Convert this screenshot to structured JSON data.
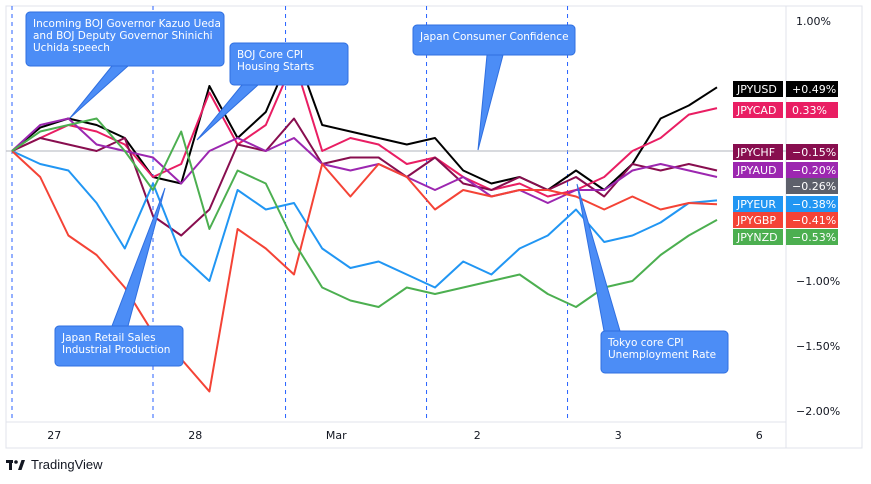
{
  "chart_data": {
    "type": "line",
    "y_unit": "%",
    "ylim": [
      -2.1,
      1.1
    ],
    "y_ticks": [
      {
        "value": 1.0,
        "label": "1.00%"
      },
      {
        "value": -1.0,
        "label": "−1.00%"
      },
      {
        "value": -1.5,
        "label": "−1.50%"
      },
      {
        "value": -2.0,
        "label": "−2.00%"
      }
    ],
    "x_ticks": [
      "27",
      "28",
      "Mar",
      "2",
      "3",
      "6"
    ],
    "grid": false,
    "series": [
      {
        "name": "JPYUSD",
        "value_label": "+0.49%",
        "color": "#000000",
        "x": [
          0,
          0.2,
          0.4,
          0.6,
          0.8,
          1.0,
          1.2,
          1.4,
          1.6,
          1.8,
          2.0,
          2.2,
          2.4,
          2.6,
          2.8,
          3.0,
          3.2,
          3.4,
          3.6,
          3.8,
          4.0,
          4.2,
          4.4,
          4.6,
          4.8,
          5.0
        ],
        "y": [
          0.0,
          0.18,
          0.25,
          0.2,
          0.1,
          -0.2,
          -0.25,
          0.5,
          0.1,
          0.3,
          0.8,
          0.2,
          0.15,
          0.1,
          0.05,
          0.1,
          -0.15,
          -0.25,
          -0.2,
          -0.3,
          -0.15,
          -0.3,
          -0.1,
          0.25,
          0.35,
          0.49
        ]
      },
      {
        "name": "JPYCAD",
        "value_label": "0.33%",
        "color": "#e91e63",
        "x": [
          0,
          0.2,
          0.4,
          0.6,
          0.8,
          1.0,
          1.2,
          1.4,
          1.6,
          1.8,
          2.0,
          2.2,
          2.4,
          2.6,
          2.8,
          3.0,
          3.2,
          3.4,
          3.6,
          3.8,
          4.0,
          4.2,
          4.4,
          4.6,
          4.8,
          5.0
        ],
        "y": [
          0.0,
          0.1,
          0.2,
          0.15,
          0.05,
          -0.2,
          -0.1,
          0.45,
          0.05,
          0.2,
          0.7,
          0.0,
          0.1,
          0.05,
          -0.1,
          -0.05,
          -0.2,
          -0.3,
          -0.25,
          -0.35,
          -0.3,
          -0.2,
          0.0,
          0.1,
          0.28,
          0.33
        ]
      },
      {
        "name": "JPYCHF",
        "value_label": "−0.15%",
        "color": "#880e4f",
        "x": [
          0,
          0.2,
          0.4,
          0.6,
          0.8,
          1.0,
          1.2,
          1.4,
          1.6,
          1.8,
          2.0,
          2.2,
          2.4,
          2.6,
          2.8,
          3.0,
          3.2,
          3.4,
          3.6,
          3.8,
          4.0,
          4.2,
          4.4,
          4.6,
          4.8,
          5.0
        ],
        "y": [
          0.0,
          0.1,
          0.05,
          0.0,
          0.1,
          -0.5,
          -0.65,
          -0.45,
          0.05,
          0.0,
          0.25,
          -0.1,
          -0.05,
          -0.05,
          -0.2,
          -0.05,
          -0.25,
          -0.3,
          -0.2,
          -0.3,
          -0.2,
          -0.35,
          -0.1,
          -0.15,
          -0.1,
          -0.15
        ]
      },
      {
        "name": "JPYAUD",
        "value_label": "−0.20%",
        "color": "#9c27b0",
        "x": [
          0,
          0.2,
          0.4,
          0.6,
          0.8,
          1.0,
          1.2,
          1.4,
          1.6,
          1.8,
          2.0,
          2.2,
          2.4,
          2.6,
          2.8,
          3.0,
          3.2,
          3.4,
          3.6,
          3.8,
          4.0,
          4.2,
          4.4,
          4.6,
          4.8,
          5.0
        ],
        "y": [
          0.0,
          0.2,
          0.25,
          0.05,
          0.0,
          -0.05,
          -0.25,
          0.0,
          0.1,
          0.0,
          0.1,
          -0.1,
          -0.15,
          -0.1,
          -0.2,
          -0.3,
          -0.2,
          -0.35,
          -0.3,
          -0.4,
          -0.3,
          -0.3,
          -0.15,
          -0.1,
          -0.15,
          -0.2
        ]
      },
      {
        "name": "",
        "value_label": "−0.26%",
        "color": "#5d606b",
        "x": [],
        "y": []
      },
      {
        "name": "JPYEUR",
        "value_label": "−0.38%",
        "color": "#2196f3",
        "x": [
          0,
          0.2,
          0.4,
          0.6,
          0.8,
          1.0,
          1.2,
          1.4,
          1.6,
          1.8,
          2.0,
          2.2,
          2.4,
          2.6,
          2.8,
          3.0,
          3.2,
          3.4,
          3.6,
          3.8,
          4.0,
          4.2,
          4.4,
          4.6,
          4.8,
          5.0
        ],
        "y": [
          0.0,
          -0.1,
          -0.15,
          -0.4,
          -0.75,
          -0.25,
          -0.8,
          -1.0,
          -0.3,
          -0.45,
          -0.4,
          -0.75,
          -0.9,
          -0.85,
          -0.95,
          -1.05,
          -0.85,
          -0.95,
          -0.75,
          -0.65,
          -0.45,
          -0.7,
          -0.65,
          -0.55,
          -0.4,
          -0.38
        ]
      },
      {
        "name": "JPYGBP",
        "value_label": "−0.41%",
        "color": "#f44336",
        "x": [
          0,
          0.2,
          0.4,
          0.6,
          0.8,
          1.0,
          1.2,
          1.4,
          1.6,
          1.8,
          2.0,
          2.2,
          2.4,
          2.6,
          2.8,
          3.0,
          3.2,
          3.4,
          3.6,
          3.8,
          4.0,
          4.2,
          4.4,
          4.6,
          4.8,
          5.0
        ],
        "y": [
          0.0,
          -0.2,
          -0.65,
          -0.8,
          -1.05,
          -1.4,
          -1.6,
          -1.85,
          -0.6,
          -0.75,
          -0.95,
          -0.1,
          -0.35,
          -0.1,
          -0.2,
          -0.45,
          -0.3,
          -0.35,
          -0.3,
          -0.3,
          -0.35,
          -0.45,
          -0.35,
          -0.45,
          -0.4,
          -0.41
        ]
      },
      {
        "name": "JPYNZD",
        "value_label": "−0.53%",
        "color": "#4caf50",
        "x": [
          0,
          0.2,
          0.4,
          0.6,
          0.8,
          1.0,
          1.2,
          1.4,
          1.6,
          1.8,
          2.0,
          2.2,
          2.4,
          2.6,
          2.8,
          3.0,
          3.2,
          3.4,
          3.6,
          3.8,
          4.0,
          4.2,
          4.4,
          4.6,
          4.8,
          5.0
        ],
        "y": [
          0.0,
          0.15,
          0.2,
          0.25,
          0.0,
          -0.3,
          0.15,
          -0.6,
          -0.15,
          -0.25,
          -0.7,
          -1.05,
          -1.15,
          -1.2,
          -1.05,
          -1.1,
          -1.05,
          -1.0,
          -0.95,
          -1.1,
          -1.2,
          -1.05,
          -1.0,
          -0.8,
          -0.65,
          -0.53
        ]
      }
    ],
    "x_domain": [
      -0.05,
      5.55
    ],
    "event_lines_x": [
      0.0,
      1.0,
      1.94,
      2.94,
      3.94
    ],
    "zero_line": 0.0,
    "annotations": [
      {
        "id": "boj-governor",
        "lines": [
          "Incoming BOJ Governor Kazuo Ueda",
          "and BOJ Deputy Governor Shinichi",
          "Uchida speech"
        ]
      },
      {
        "id": "boj-core-cpi",
        "lines": [
          "BOJ Core CPI",
          "Housing Starts"
        ]
      },
      {
        "id": "japan-consumer-confidence",
        "lines": [
          "Japan Consumer Confidence"
        ]
      },
      {
        "id": "japan-retail-sales",
        "lines": [
          "Japan Retail Sales",
          "Industrial Production"
        ]
      },
      {
        "id": "tokyo-core-cpi",
        "lines": [
          "Tokyo core CPI",
          "Unemployment Rate"
        ]
      }
    ]
  },
  "branding": {
    "name": "TradingView"
  }
}
